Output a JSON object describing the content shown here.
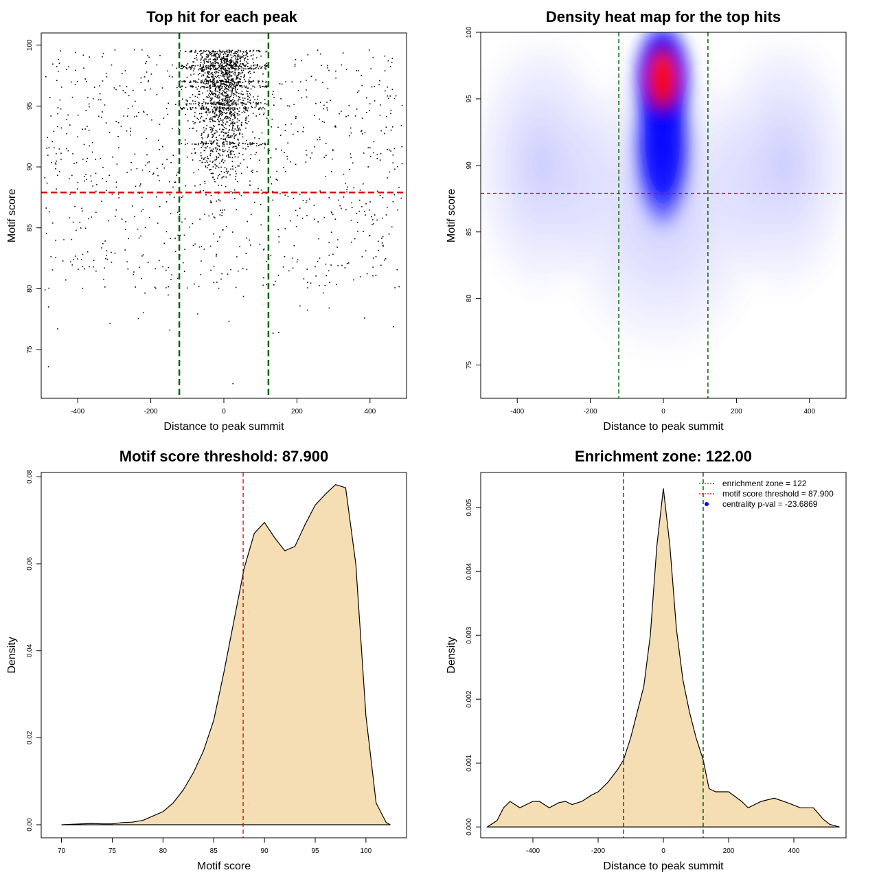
{
  "colors": {
    "zone_line": "#006400",
    "threshold_line": "#dd0000",
    "density_fill": "#f5deb3",
    "point": "#000000",
    "heat_low": "#ffffff",
    "heat_mid": "#0000ff",
    "heat_high": "#ff0000",
    "legend_point": "#0000ff"
  },
  "chart_data": [
    {
      "type": "scatter",
      "title": "Top hit for each peak",
      "xlabel": "Distance to peak summit",
      "ylabel": "Motif score",
      "xlim": [
        -500,
        500
      ],
      "ylim": [
        71,
        101
      ],
      "xticks": [
        -400,
        -200,
        0,
        200,
        400
      ],
      "yticks": [
        75,
        80,
        85,
        90,
        95,
        100
      ],
      "vlines": [
        -122,
        122
      ],
      "hline": 87.9,
      "grid": false,
      "points_sample": [
        {
          "x": -480,
          "y": 73.6
        },
        {
          "x": -455,
          "y": 76.7
        },
        {
          "x": -480,
          "y": 78.5
        },
        {
          "x": -148,
          "y": 76.6
        },
        {
          "x": 150,
          "y": 76.4
        },
        {
          "x": 25,
          "y": 72.2
        },
        {
          "x": 385,
          "y": 77.6
        },
        {
          "x": -10,
          "y": 97.5
        },
        {
          "x": 0,
          "y": 92.0
        },
        {
          "x": 10,
          "y": 89.5
        },
        {
          "x": -60,
          "y": 95.0
        },
        {
          "x": 60,
          "y": 94.0
        },
        {
          "x": -350,
          "y": 88.0
        },
        {
          "x": 420,
          "y": 91.0
        },
        {
          "x": -430,
          "y": 98.0
        }
      ]
    },
    {
      "type": "heatmap",
      "title": "Density heat map for the top hits",
      "xlabel": "Distance to peak summit",
      "ylabel": "Motif score",
      "xlim": [
        -500,
        500
      ],
      "ylim": [
        72.5,
        100
      ],
      "xticks": [
        -400,
        -200,
        0,
        200,
        400
      ],
      "yticks": [
        75,
        80,
        85,
        90,
        95,
        100
      ],
      "vlines": [
        -122,
        122
      ],
      "hline": 87.9,
      "hotspot": {
        "x": 0,
        "y_range": [
          88,
          100
        ],
        "peak_y": 97
      }
    },
    {
      "type": "area",
      "title": "Motif score threshold: 87.900",
      "xlabel": "Motif score",
      "ylabel": "Density",
      "xlim": [
        68,
        104
      ],
      "ylim": [
        -0.003,
        0.081
      ],
      "xticks": [
        70,
        75,
        80,
        85,
        90,
        95,
        100
      ],
      "yticks": [
        0.0,
        0.02,
        0.04,
        0.06,
        0.08
      ],
      "ytick_labels": [
        "0.00",
        "0.02",
        "0.04",
        "0.06",
        "0.08"
      ],
      "vline": 87.9,
      "x": [
        70,
        71,
        72,
        73,
        74,
        75,
        76,
        77,
        78,
        79,
        80,
        81,
        82,
        83,
        84,
        85,
        86,
        87,
        88,
        89,
        90,
        91,
        92,
        93,
        94,
        95,
        96,
        97,
        98,
        99,
        100,
        101,
        102,
        102.4
      ],
      "y": [
        0.0,
        0.0001,
        0.0002,
        0.0003,
        0.0002,
        0.0002,
        0.0005,
        0.0006,
        0.001,
        0.002,
        0.003,
        0.005,
        0.008,
        0.012,
        0.017,
        0.024,
        0.035,
        0.047,
        0.059,
        0.067,
        0.0695,
        0.066,
        0.063,
        0.064,
        0.069,
        0.0735,
        0.076,
        0.0782,
        0.0775,
        0.06,
        0.025,
        0.005,
        0.0005,
        0.0
      ]
    },
    {
      "type": "area",
      "title": "Enrichment zone: 122.00",
      "xlabel": "Distance to peak summit",
      "ylabel": "Density",
      "xlim": [
        -560,
        560
      ],
      "ylim": [
        -0.00017,
        0.00555
      ],
      "xticks": [
        -400,
        -200,
        0,
        200,
        400
      ],
      "yticks": [
        0.0,
        0.001,
        0.002,
        0.003,
        0.004,
        0.005
      ],
      "ytick_labels": [
        "0.000",
        "0.001",
        "0.002",
        "0.003",
        "0.004",
        "0.005"
      ],
      "vlines": [
        -122,
        122
      ],
      "x": [
        -540,
        -510,
        -490,
        -470,
        -440,
        -420,
        -400,
        -380,
        -350,
        -320,
        -300,
        -280,
        -250,
        -220,
        -200,
        -170,
        -140,
        -122,
        -100,
        -80,
        -60,
        -40,
        -20,
        0,
        20,
        40,
        60,
        80,
        100,
        122,
        140,
        160,
        200,
        240,
        260,
        300,
        340,
        380,
        420,
        460,
        490,
        510,
        540
      ],
      "y": [
        0.0,
        0.0001,
        0.0003,
        0.0004,
        0.0003,
        0.00035,
        0.0004,
        0.0004,
        0.0003,
        0.00038,
        0.0004,
        0.00035,
        0.0004,
        0.0005,
        0.00055,
        0.0007,
        0.0009,
        0.00105,
        0.0014,
        0.0018,
        0.0022,
        0.003,
        0.0044,
        0.0053,
        0.0044,
        0.0031,
        0.0023,
        0.0018,
        0.0014,
        0.00105,
        0.0006,
        0.00055,
        0.00055,
        0.0004,
        0.0003,
        0.0004,
        0.00045,
        0.00038,
        0.0003,
        0.0003,
        0.00012,
        4e-05,
        0.0
      ],
      "legend": {
        "position": "top-right",
        "entries": [
          {
            "label": "enrichment zone = 122",
            "kind": "line",
            "color": "#006400"
          },
          {
            "label": "motif score threshold = 87.900",
            "kind": "line",
            "color": "#dd0000"
          },
          {
            "label": "centrality p-val = -23.6869",
            "kind": "point",
            "color": "#0000ff"
          }
        ]
      }
    }
  ]
}
